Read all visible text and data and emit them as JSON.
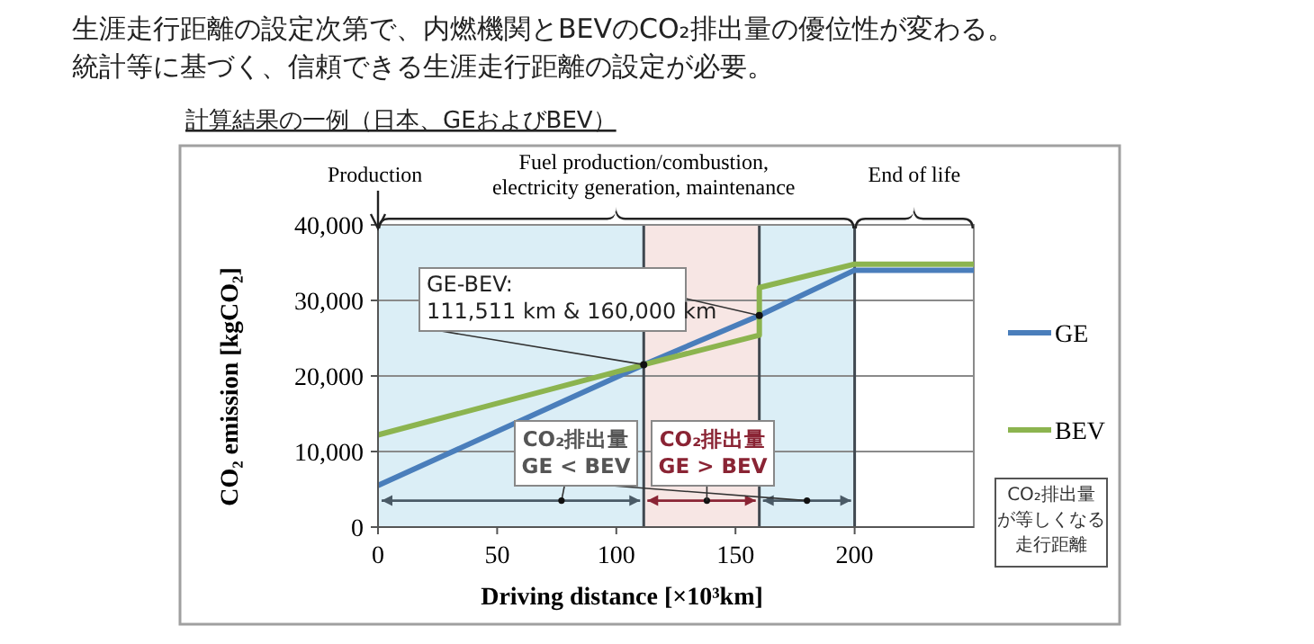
{
  "chart_data": {
    "type": "line",
    "title": "生涯走行距離の設定次第で、内燃機関とBEVのCO₂排出量の優位性が変わる。",
    "subtitle": "統計等に基づく、信頼できる生涯走行距離の設定が必要。",
    "xlabel": "Driving distance [×10³km]",
    "ylabel": "CO₂ emission [kgCO₂]",
    "xlim": [
      0,
      250
    ],
    "xticks": [
      0,
      50,
      100,
      150,
      200
    ],
    "ylim": [
      0,
      40000
    ],
    "yticks": [
      {
        "value": 0,
        "label": "0"
      },
      {
        "value": 10000,
        "label": "10,000"
      },
      {
        "value": 20000,
        "label": "20,000"
      },
      {
        "value": 30000,
        "label": "30,000"
      },
      {
        "value": 40000,
        "label": "40,000"
      }
    ],
    "grid": "y",
    "legend": "right",
    "marker": "none",
    "line_style": "solid",
    "series": [
      {
        "name": "GE",
        "color": "#4a7ebb",
        "x": [
          0,
          111.511,
          160,
          200,
          250
        ],
        "values": [
          5500,
          21500,
          28000,
          34000,
          34000
        ]
      },
      {
        "name": "BEV",
        "color": "#8cb44f",
        "x": [
          0,
          111.511,
          160,
          160,
          200,
          250
        ],
        "values": [
          12200,
          21500,
          25400,
          31700,
          34800,
          34800
        ]
      }
    ],
    "bands": [
      {
        "axis": "x",
        "from": 0,
        "to": 111.511,
        "color": "#dbeef6"
      },
      {
        "axis": "x",
        "from": 111.511,
        "to": 160,
        "color": "#f7e6e4"
      },
      {
        "axis": "x",
        "from": 160,
        "to": 200,
        "color": "#dbeef6"
      }
    ],
    "ref_lines": [
      {
        "axis": "x",
        "value": 111.511,
        "color": "#404850"
      },
      {
        "axis": "x",
        "value": 160,
        "color": "#404850"
      },
      {
        "axis": "x",
        "value": 200,
        "color": "#404850"
      }
    ],
    "annotations": [
      "Production",
      "Fuel production/combustion,\nelectricity  generation, maintenance",
      "End of life",
      {
        "text": "GE-BEV:\n111,511 km & 160,000 km",
        "x": 111.511,
        "y": 21500
      },
      {
        "text": "CO₂排出量\nGE < BEV",
        "x": 77,
        "y": 3500
      },
      {
        "text": "CO₂排出量\nGE > BEV",
        "x": 138,
        "y": 3500
      },
      "CO₂排出量が等しくなる走行距離",
      "計算結果の一例（日本、GEおよびBEV）"
    ]
  }
}
